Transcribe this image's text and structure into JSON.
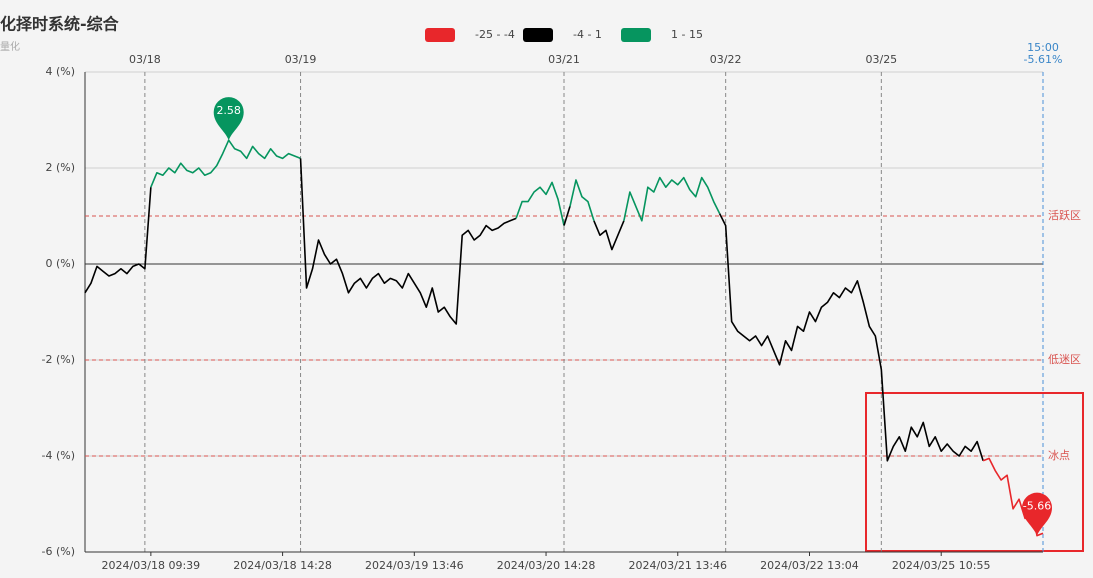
{
  "chart_data": {
    "type": "line",
    "title": "化择时系统-综合",
    "subtitle": "量化",
    "pieces": [
      {
        "label": "-25 - -4",
        "min": -25,
        "max": -4,
        "color": "#e8272b"
      },
      {
        "label": "-4 - 1",
        "min": -4,
        "max": 1,
        "color": "#000000"
      },
      {
        "label": "1 - 15",
        "min": 1,
        "max": 15,
        "color": "#06955f"
      }
    ],
    "values": [
      -0.6,
      -0.4,
      -0.05,
      -0.15,
      -0.25,
      -0.2,
      -0.1,
      -0.2,
      -0.05,
      0.0,
      -0.1,
      1.6,
      1.9,
      1.85,
      2.0,
      1.9,
      2.1,
      1.95,
      1.9,
      2.0,
      1.85,
      1.9,
      2.05,
      2.3,
      2.58,
      2.4,
      2.35,
      2.2,
      2.45,
      2.3,
      2.2,
      2.4,
      2.25,
      2.2,
      2.3,
      2.25,
      2.2,
      -0.5,
      -0.1,
      0.5,
      0.2,
      0.0,
      0.1,
      -0.2,
      -0.6,
      -0.4,
      -0.3,
      -0.5,
      -0.3,
      -0.2,
      -0.4,
      -0.3,
      -0.35,
      -0.5,
      -0.2,
      -0.4,
      -0.6,
      -0.9,
      -0.5,
      -1.0,
      -0.9,
      -1.1,
      -1.25,
      0.6,
      0.7,
      0.5,
      0.6,
      0.8,
      0.7,
      0.75,
      0.85,
      0.9,
      0.95,
      1.3,
      1.3,
      1.5,
      1.6,
      1.45,
      1.7,
      1.35,
      0.8,
      1.2,
      1.75,
      1.4,
      1.3,
      0.9,
      0.6,
      0.7,
      0.3,
      0.6,
      0.9,
      1.5,
      1.2,
      0.9,
      1.6,
      1.5,
      1.8,
      1.6,
      1.75,
      1.65,
      1.8,
      1.55,
      1.4,
      1.8,
      1.6,
      1.3,
      1.05,
      0.8,
      -1.2,
      -1.4,
      -1.5,
      -1.6,
      -1.5,
      -1.7,
      -1.5,
      -1.8,
      -2.1,
      -1.6,
      -1.8,
      -1.3,
      -1.4,
      -1.0,
      -1.2,
      -0.9,
      -0.8,
      -0.6,
      -0.7,
      -0.5,
      -0.6,
      -0.35,
      -0.8,
      -1.3,
      -1.5,
      -2.2,
      -4.1,
      -3.8,
      -3.6,
      -3.9,
      -3.4,
      -3.6,
      -3.3,
      -3.8,
      -3.6,
      -3.9,
      -3.75,
      -3.9,
      -4.0,
      -3.8,
      -3.9,
      -3.7,
      -4.1,
      -4.05,
      -4.3,
      -4.5,
      -4.4,
      -5.1,
      -4.9,
      -5.3,
      -5.0,
      -5.66,
      -5.61
    ],
    "xlim": [
      0,
      160
    ],
    "xticks": [
      {
        "value": 11,
        "label": "2024/03/18 09:39"
      },
      {
        "value": 33,
        "label": "2024/03/18 14:28"
      },
      {
        "value": 55,
        "label": "2024/03/19 13:46"
      },
      {
        "value": 77,
        "label": "2024/03/20 14:28"
      },
      {
        "value": 99,
        "label": "2024/03/21 13:46"
      },
      {
        "value": 121,
        "label": "2024/03/22 13:04"
      },
      {
        "value": 143,
        "label": "2024/03/25 10:55"
      }
    ],
    "day_lines": [
      {
        "value": 10,
        "label": "03/18"
      },
      {
        "value": 36,
        "label": "03/19"
      },
      {
        "value": 80,
        "label": "03/21"
      },
      {
        "value": 107,
        "label": "03/22"
      },
      {
        "value": 133,
        "label": "03/25"
      }
    ],
    "end_time": "15:00",
    "end_value_label": "-5.61%",
    "ylim": [
      -6,
      4
    ],
    "yticks": [
      {
        "value": -6,
        "label": "-6 (%)"
      },
      {
        "value": -4,
        "label": "-4 (%)"
      },
      {
        "value": -2,
        "label": "-2 (%)"
      },
      {
        "value": 0,
        "label": "0 (%)"
      },
      {
        "value": 2,
        "label": "2 (%)"
      },
      {
        "value": 4,
        "label": "4 (%)"
      }
    ],
    "mark_lines": [
      {
        "value": 1,
        "label": "活跃区"
      },
      {
        "value": -2,
        "label": "低迷区"
      },
      {
        "value": -4,
        "label": "冰点"
      }
    ],
    "mark_line_color": "#d9534f",
    "mark_max_min": true,
    "grid": true
  }
}
